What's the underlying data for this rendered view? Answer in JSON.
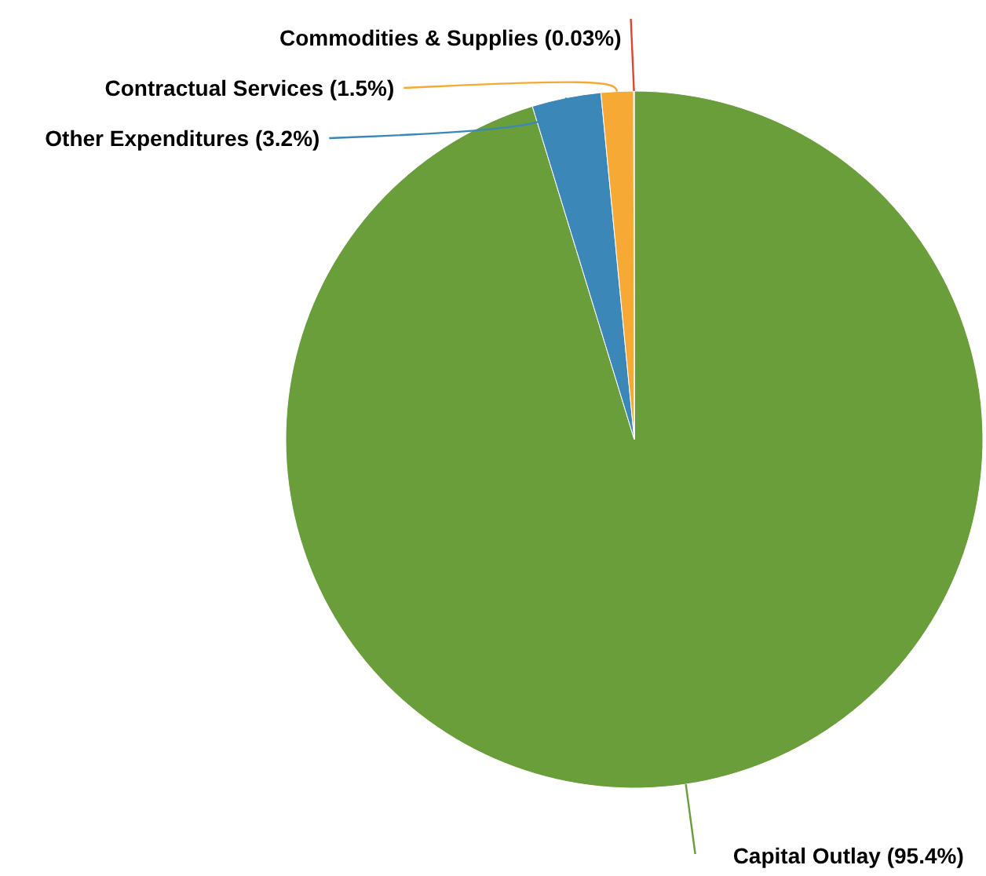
{
  "chart_data": {
    "type": "pie",
    "categories": [
      "Capital Outlay",
      "Other Expenditures",
      "Contractual Services",
      "Commodities & Supplies"
    ],
    "values": [
      95.4,
      3.2,
      1.5,
      0.03
    ],
    "value_labels": [
      "(95.4%)",
      "(3.2%)",
      "(1.5%)",
      "(0.03%)"
    ],
    "colors": [
      "#6a9e3a",
      "#3b88b8",
      "#f6a935",
      "#e0452f"
    ],
    "legend": false
  }
}
